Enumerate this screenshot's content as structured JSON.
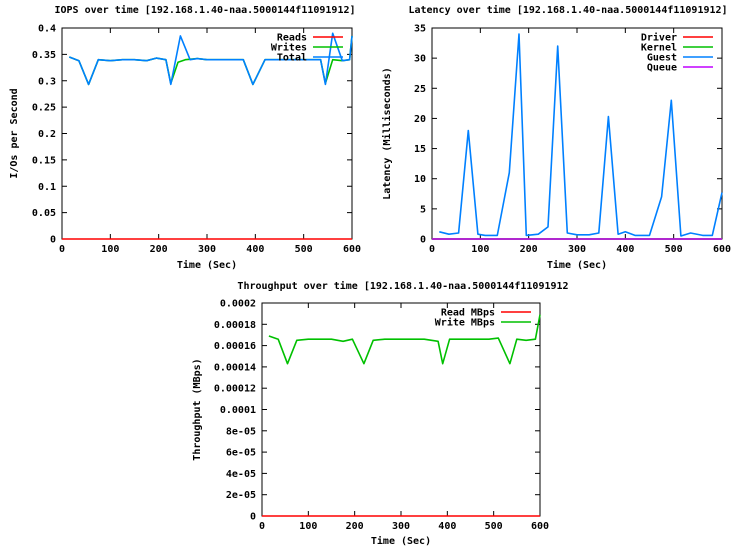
{
  "chart_data": [
    {
      "type": "line",
      "title": "IOPS over time [192.168.1.40-naa.5000144f11091912]",
      "xlabel": "Time (Sec)",
      "ylabel": "I/Os per Second",
      "xlim": [
        0,
        600
      ],
      "ylim": [
        0,
        0.4
      ],
      "xticks": [
        "0",
        "100",
        "200",
        "300",
        "400",
        "500",
        "600"
      ],
      "yticks": [
        "0",
        "0.05",
        "0.1",
        "0.15",
        "0.2",
        "0.25",
        "0.3",
        "0.35",
        "0.4"
      ],
      "legend_position": "top-right",
      "series": [
        {
          "name": "Reads",
          "color": "#ff0000",
          "x": [
            0,
            600
          ],
          "y": [
            0,
            0
          ]
        },
        {
          "name": "Writes",
          "color": "#00c000",
          "x": [
            15,
            35,
            55,
            75,
            100,
            125,
            150,
            175,
            195,
            215,
            225,
            240,
            255,
            280,
            300,
            325,
            350,
            375,
            395,
            420,
            450,
            480,
            510,
            535,
            545,
            560,
            580,
            595,
            600
          ],
          "y": [
            0.345,
            0.338,
            0.293,
            0.34,
            0.338,
            0.34,
            0.34,
            0.338,
            0.343,
            0.34,
            0.295,
            0.335,
            0.34,
            0.342,
            0.34,
            0.34,
            0.34,
            0.34,
            0.293,
            0.34,
            0.34,
            0.34,
            0.34,
            0.34,
            0.295,
            0.34,
            0.338,
            0.34,
            0.385
          ]
        },
        {
          "name": "Total",
          "color": "#0080ff",
          "x": [
            15,
            35,
            55,
            75,
            100,
            125,
            150,
            175,
            195,
            215,
            225,
            245,
            265,
            280,
            300,
            325,
            350,
            375,
            395,
            420,
            450,
            480,
            510,
            535,
            545,
            560,
            580,
            595,
            600
          ],
          "y": [
            0.345,
            0.338,
            0.293,
            0.34,
            0.338,
            0.34,
            0.34,
            0.338,
            0.343,
            0.34,
            0.293,
            0.385,
            0.34,
            0.342,
            0.34,
            0.34,
            0.34,
            0.34,
            0.293,
            0.34,
            0.34,
            0.34,
            0.34,
            0.34,
            0.293,
            0.39,
            0.338,
            0.34,
            0.385
          ]
        }
      ]
    },
    {
      "type": "line",
      "title": "Latency over time [192.168.1.40-naa.5000144f11091912]",
      "xlabel": "Time (Sec)",
      "ylabel": "Latency (Milliseconds)",
      "xlim": [
        0,
        600
      ],
      "ylim": [
        0,
        35
      ],
      "xticks": [
        "0",
        "100",
        "200",
        "300",
        "400",
        "500",
        "600"
      ],
      "yticks": [
        "0",
        "5",
        "10",
        "15",
        "20",
        "25",
        "30",
        "35"
      ],
      "legend_position": "top-right",
      "series": [
        {
          "name": "Driver",
          "color": "#ff0000",
          "x": [
            0,
            600
          ],
          "y": [
            0,
            0
          ]
        },
        {
          "name": "Kernel",
          "color": "#00c000",
          "x": [
            0,
            600
          ],
          "y": [
            0,
            0
          ]
        },
        {
          "name": "Guest",
          "color": "#0080ff",
          "x": [
            15,
            35,
            55,
            75,
            95,
            110,
            135,
            160,
            180,
            195,
            220,
            240,
            260,
            280,
            300,
            325,
            345,
            365,
            385,
            400,
            420,
            450,
            475,
            495,
            515,
            535,
            560,
            580,
            600
          ],
          "y": [
            1.2,
            0.8,
            1.0,
            18,
            0.8,
            0.6,
            0.6,
            11,
            34,
            0.6,
            0.8,
            2.0,
            32,
            1.0,
            0.7,
            0.7,
            1.0,
            20.3,
            0.8,
            1.2,
            0.6,
            0.6,
            7.0,
            23,
            0.5,
            1.0,
            0.6,
            0.6,
            7.7
          ]
        },
        {
          "name": "Queue",
          "color": "#c000ff",
          "x": [
            0,
            600
          ],
          "y": [
            0,
            0
          ]
        }
      ]
    },
    {
      "type": "line",
      "title": "Throughput over time [192.168.1.40-naa.5000144f11091912",
      "xlabel": "Time (Sec)",
      "ylabel": "Throughput (MBps)",
      "xlim": [
        0,
        600
      ],
      "ylim": [
        0,
        0.0002
      ],
      "xticks": [
        "0",
        "100",
        "200",
        "300",
        "400",
        "500",
        "600"
      ],
      "yticks": [
        "0",
        "2e-05",
        "4e-05",
        "6e-05",
        "8e-05",
        "0.0001",
        "0.00012",
        "0.00014",
        "0.00016",
        "0.00018",
        "0.0002"
      ],
      "legend_position": "top-right",
      "series": [
        {
          "name": "Read MBps",
          "color": "#ff0000",
          "x": [
            0,
            600
          ],
          "y": [
            0,
            0
          ]
        },
        {
          "name": "Write MBps",
          "color": "#00c000",
          "x": [
            15,
            35,
            55,
            75,
            100,
            125,
            150,
            175,
            195,
            220,
            240,
            265,
            290,
            320,
            350,
            380,
            390,
            405,
            430,
            460,
            490,
            510,
            535,
            550,
            570,
            590,
            600
          ],
          "y": [
            0.000169,
            0.000166,
            0.000143,
            0.000165,
            0.000166,
            0.000166,
            0.000166,
            0.000164,
            0.000166,
            0.000143,
            0.000165,
            0.000166,
            0.000166,
            0.000166,
            0.000166,
            0.000164,
            0.000143,
            0.000166,
            0.000166,
            0.000166,
            0.000166,
            0.000167,
            0.000143,
            0.000166,
            0.000165,
            0.000166,
            0.000189
          ]
        }
      ]
    }
  ]
}
